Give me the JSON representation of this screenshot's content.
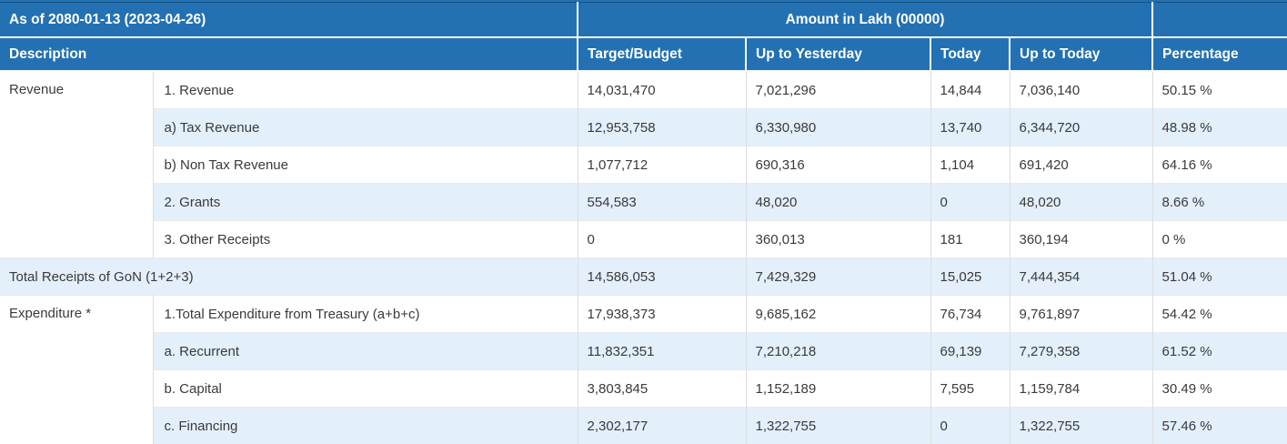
{
  "colors": {
    "header_bg": "#2371b3",
    "header_text": "#ffffff",
    "row_alt_bg": "#e3effb",
    "body_text": "#3a3a3a",
    "cell_border": "#dddddd"
  },
  "table": {
    "title": {
      "as_of": "As of 2080-01-13 (2023-04-26)",
      "amount_unit": "Amount in Lakh (00000)"
    },
    "columns": {
      "description": "Description",
      "target": "Target/Budget",
      "up_to_yesterday": "Up to Yesterday",
      "today": "Today",
      "up_to_today": "Up to Today",
      "percentage": "Percentage"
    },
    "rows": [
      {
        "group": "Revenue",
        "label": "1. Revenue",
        "target": "14,031,470",
        "up_to_yesterday": "7,021,296",
        "today": "14,844",
        "up_to_today": "7,036,140",
        "percentage": "50.15 %"
      },
      {
        "label": "a) Tax Revenue",
        "target": "12,953,758",
        "up_to_yesterday": "6,330,980",
        "today": "13,740",
        "up_to_today": "6,344,720",
        "percentage": "48.98 %"
      },
      {
        "label": "b) Non Tax Revenue",
        "target": "1,077,712",
        "up_to_yesterday": "690,316",
        "today": "1,104",
        "up_to_today": "691,420",
        "percentage": "64.16 %"
      },
      {
        "label": "2. Grants",
        "target": "554,583",
        "up_to_yesterday": "48,020",
        "today": "0",
        "up_to_today": "48,020",
        "percentage": "8.66 %"
      },
      {
        "label": "3. Other Receipts",
        "target": "0",
        "up_to_yesterday": "360,013",
        "today": "181",
        "up_to_today": "360,194",
        "percentage": "0 %"
      },
      {
        "label": "Total Receipts of GoN (1+2+3)",
        "target": "14,586,053",
        "up_to_yesterday": "7,429,329",
        "today": "15,025",
        "up_to_today": "7,444,354",
        "percentage": "51.04 %"
      },
      {
        "group": "Expenditure *",
        "label": "1.Total Expenditure from Treasury (a+b+c)",
        "target": "17,938,373",
        "up_to_yesterday": "9,685,162",
        "today": "76,734",
        "up_to_today": "9,761,897",
        "percentage": "54.42 %"
      },
      {
        "label": "a. Recurrent",
        "target": "11,832,351",
        "up_to_yesterday": "7,210,218",
        "today": "69,139",
        "up_to_today": "7,279,358",
        "percentage": "61.52 %"
      },
      {
        "label": "b. Capital",
        "target": "3,803,845",
        "up_to_yesterday": "1,152,189",
        "today": "7,595",
        "up_to_today": "1,159,784",
        "percentage": "30.49 %"
      },
      {
        "label": "c. Financing",
        "target": "2,302,177",
        "up_to_yesterday": "1,322,755",
        "today": "0",
        "up_to_today": "1,322,755",
        "percentage": "57.46 %"
      }
    ]
  }
}
